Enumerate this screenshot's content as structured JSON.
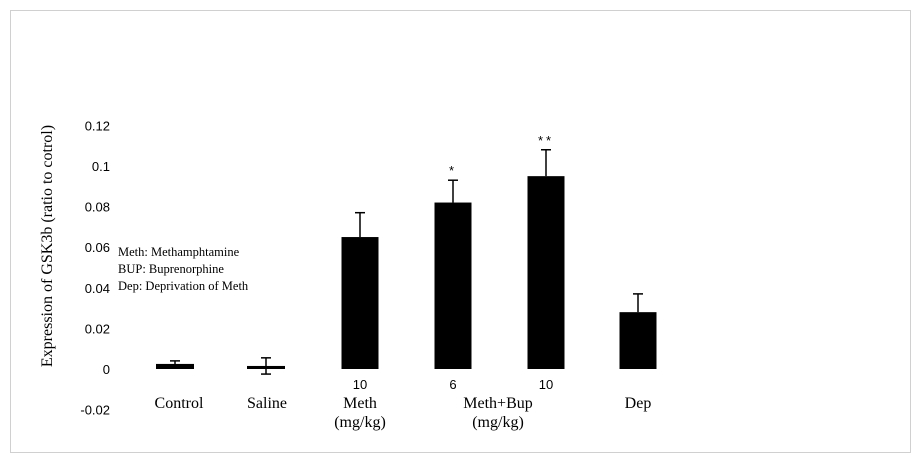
{
  "chart_data": {
    "type": "bar",
    "ylabel": "Expression of  GSK3b (ratio to cotrol)",
    "ylim": [
      -0.02,
      0.12
    ],
    "yticks": [
      "0.12",
      "0.1",
      "0.08",
      "0.06",
      "0.04",
      "0.02",
      "0",
      "-0.02"
    ],
    "ytick_values": [
      0.12,
      0.1,
      0.08,
      0.06,
      0.04,
      0.02,
      0,
      -0.02
    ],
    "dose_labels": [
      "",
      "",
      "10",
      "6",
      "10",
      ""
    ],
    "values": [
      0.0025,
      0.0015,
      0.065,
      0.082,
      0.095,
      0.028
    ],
    "errors": [
      0.0015,
      0.004,
      0.012,
      0.011,
      0.013,
      0.009
    ],
    "significance": [
      "",
      "",
      "",
      "*",
      "**",
      ""
    ],
    "groups": [
      {
        "label": "Control"
      },
      {
        "label": "Saline"
      },
      {
        "label": "Meth",
        "sublabel": "(mg/kg)"
      },
      {
        "label": "Meth+Bup",
        "sublabel": "(mg/kg)"
      },
      {
        "label": "Dep"
      }
    ],
    "legend": [
      "Meth: Methamphtamine",
      "BUP: Buprenorphine",
      "Dep:  Deprivation of Meth"
    ],
    "colors": {
      "bar": "#000000",
      "axis": "#000000"
    }
  }
}
